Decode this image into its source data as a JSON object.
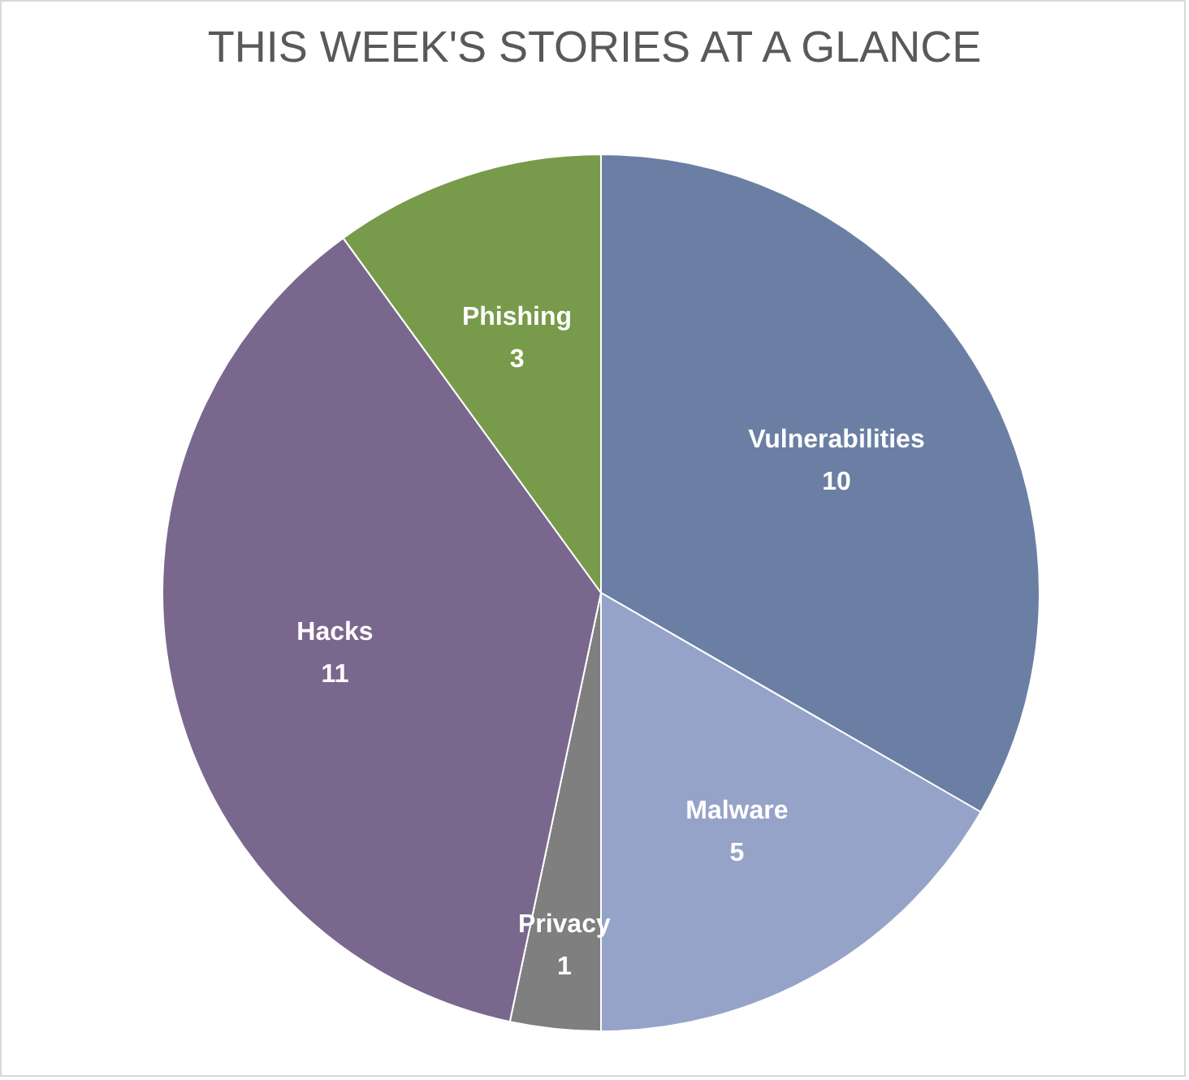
{
  "chart_data": {
    "type": "pie",
    "title": "THIS WEEK'S STORIES AT A GLANCE",
    "categories": [
      "Vulnerabilities",
      "Malware",
      "Privacy",
      "Hacks",
      "Phishing"
    ],
    "values": [
      10,
      5,
      1,
      11,
      3
    ],
    "colors": [
      "#6a7fa3",
      "#96a3c8",
      "#7f7f7f",
      "#7a678e",
      "#779b4a"
    ],
    "data_labels": true,
    "legend": false
  }
}
